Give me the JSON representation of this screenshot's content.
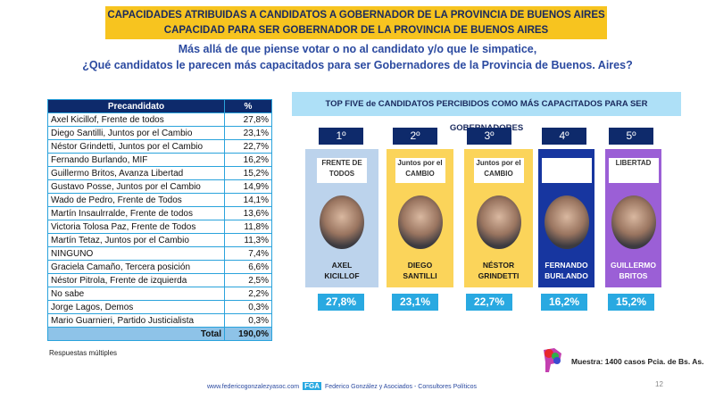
{
  "header": {
    "title_line1": "CAPACIDADES ATRIBUIDAS A CANDIDATOS A GOBERNADOR DE LA PROVINCIA DE BUENOS AIRES",
    "title_line2": "CAPACIDAD PARA SER GOBERNADOR DE LA PROVINCIA DE BUENOS AIRES",
    "question_line1": "Más allá de que piense votar o no al candidato y/o que le simpatice,",
    "question_line2": "¿Qué candidatos le parecen más capacitados para ser Gobernadores de la Provincia de Buenos. Aires?"
  },
  "table": {
    "headers": [
      "Precandidato",
      "%"
    ],
    "rows": [
      [
        "Axel Kicillof, Frente de todos",
        "27,8%"
      ],
      [
        "Diego Santilli, Juntos por el Cambio",
        "23,1%"
      ],
      [
        "Néstor Grindetti, Juntos por el Cambio",
        "22,7%"
      ],
      [
        "Fernando Burlando, MIF",
        "16,2%"
      ],
      [
        "Guillermo Britos, Avanza Libertad",
        "15,2%"
      ],
      [
        "Gustavo Posse, Juntos por el Cambio",
        "14,9%"
      ],
      [
        "Wado de Pedro, Frente de Todos",
        "14,1%"
      ],
      [
        "Martín Insaulrralde, Frente de todos",
        "13,6%"
      ],
      [
        "Victoria Tolosa Paz, Frente de Todos",
        "11,8%"
      ],
      [
        "Martín Tetaz, Juntos por el Cambio",
        "11,3%"
      ],
      [
        "NINGUNO",
        "7,4%"
      ],
      [
        "Graciela Camaño, Tercera posición",
        "6,6%"
      ],
      [
        "Néstor Pitrola, Frente de izquierda",
        "2,5%"
      ],
      [
        "No sabe",
        "2,2%"
      ],
      [
        "Jorge Lagos, Demos",
        "0,3%"
      ],
      [
        "Mario Guarnieri, Partido Justicialista",
        "0,3%"
      ]
    ],
    "total_label": "Total",
    "total_value": "190,0%"
  },
  "top5": {
    "title": "TOP FIVE de CANDIDATOS PERCIBIDOS COMO MÁS CAPACITADOS PARA SER GOBERNADORES",
    "candidates": [
      {
        "rank": "1º",
        "name1": "AXEL",
        "name2": "KICILLOF",
        "pct": "27,8%",
        "logo": "FRENTE DE TODOS",
        "color": "#bcd3ec",
        "text": "#1a1a1a"
      },
      {
        "rank": "2º",
        "name1": "DIEGO",
        "name2": "SANTILLI",
        "pct": "23,1%",
        "logo": "Juntos por el CAMBIO",
        "color": "#fbd45a",
        "text": "#1a1a1a"
      },
      {
        "rank": "3º",
        "name1": "NÉSTOR",
        "name2": "GRINDETTI",
        "pct": "22,7%",
        "logo": "Juntos por el CAMBIO",
        "color": "#fbd45a",
        "text": "#1a1a1a"
      },
      {
        "rank": "4º",
        "name1": "FERNANDO",
        "name2": "BURLANDO",
        "pct": "16,2%",
        "logo": "",
        "color": "#1736a0",
        "text": "#ffffff"
      },
      {
        "rank": "5º",
        "name1": "GUILLERMO",
        "name2": "BRITOS",
        "pct": "15,2%",
        "logo": "LIBERTAD",
        "color": "#9b5fd6",
        "text": "#ffffff"
      }
    ]
  },
  "notes": {
    "multiple": "Respuestas múltiples",
    "sample": "Muestra: 1400 casos Pcia. de Bs. As."
  },
  "footer": {
    "website": "www.federicogonzalezyasoc.com",
    "brand": "FGA",
    "company": "Federico González y Asociados - Consultores Políticos",
    "page": "12"
  }
}
